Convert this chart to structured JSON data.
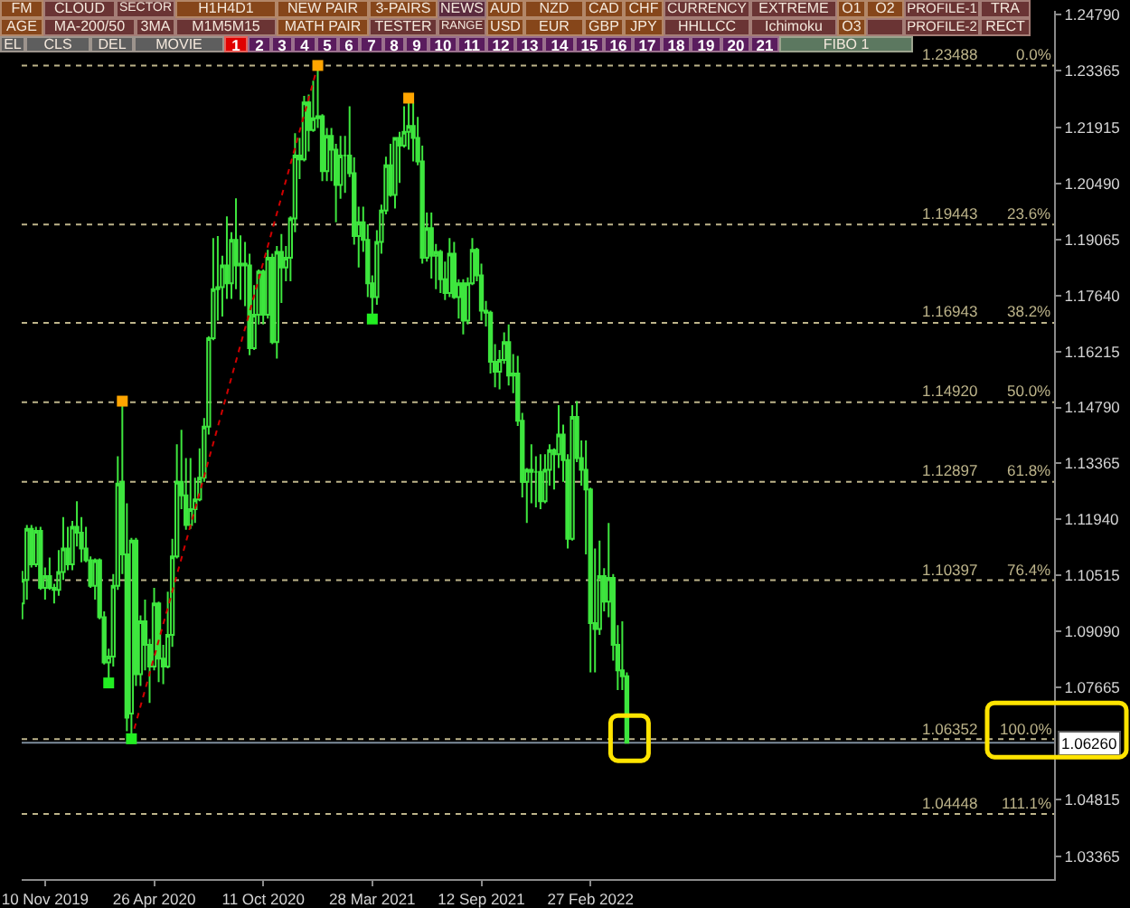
{
  "chart_data": {
    "type": "candlestick",
    "x": [
      "2019-10-06",
      "2019-10-13",
      "2019-10-20",
      "2019-10-27",
      "2019-11-03",
      "2019-11-10",
      "2019-11-17",
      "2019-11-24",
      "2019-12-01",
      "2019-12-08",
      "2019-12-15",
      "2019-12-22",
      "2019-12-29",
      "2020-01-05",
      "2020-01-12",
      "2020-01-19",
      "2020-01-26",
      "2020-02-02",
      "2020-02-09",
      "2020-02-16",
      "2020-02-23",
      "2020-03-01",
      "2020-03-08",
      "2020-03-15",
      "2020-03-22",
      "2020-03-29",
      "2020-04-05",
      "2020-04-12",
      "2020-04-19",
      "2020-04-26",
      "2020-05-03",
      "2020-05-10",
      "2020-05-17",
      "2020-05-24",
      "2020-05-31",
      "2020-06-07",
      "2020-06-14",
      "2020-06-21",
      "2020-06-28",
      "2020-07-05",
      "2020-07-12",
      "2020-07-19",
      "2020-07-26",
      "2020-08-02",
      "2020-08-09",
      "2020-08-16",
      "2020-08-23",
      "2020-08-30",
      "2020-09-06",
      "2020-09-13",
      "2020-09-20",
      "2020-09-27",
      "2020-10-04",
      "2020-10-11",
      "2020-10-18",
      "2020-10-25",
      "2020-11-01",
      "2020-11-08",
      "2020-11-15",
      "2020-11-22",
      "2020-11-29",
      "2020-12-06",
      "2020-12-13",
      "2020-12-20",
      "2020-12-27",
      "2021-01-03",
      "2021-01-10",
      "2021-01-17",
      "2021-01-24",
      "2021-01-31",
      "2021-02-07",
      "2021-02-14",
      "2021-02-21",
      "2021-02-28",
      "2021-03-07",
      "2021-03-14",
      "2021-03-21",
      "2021-03-28",
      "2021-04-04",
      "2021-04-11",
      "2021-04-18",
      "2021-04-25",
      "2021-05-02",
      "2021-05-09",
      "2021-05-16",
      "2021-05-23",
      "2021-05-30",
      "2021-06-06",
      "2021-06-13",
      "2021-06-20",
      "2021-06-27",
      "2021-07-04",
      "2021-07-11",
      "2021-07-18",
      "2021-07-25",
      "2021-08-01",
      "2021-08-08",
      "2021-08-15",
      "2021-08-22",
      "2021-08-29",
      "2021-09-05",
      "2021-09-12",
      "2021-09-19",
      "2021-09-26",
      "2021-10-03",
      "2021-10-10",
      "2021-10-17",
      "2021-10-24",
      "2021-10-31",
      "2021-11-07",
      "2021-11-14",
      "2021-11-21",
      "2021-11-28",
      "2021-12-05",
      "2021-12-12",
      "2021-12-19",
      "2021-12-26",
      "2022-01-02",
      "2022-01-09",
      "2022-01-16",
      "2022-01-23",
      "2022-01-30",
      "2022-02-06",
      "2022-02-13",
      "2022-02-20",
      "2022-02-27",
      "2022-03-06",
      "2022-03-13",
      "2022-03-20",
      "2022-03-27",
      "2022-04-03",
      "2022-04-10",
      "2022-04-17",
      "2022-04-24"
    ],
    "ohlc": [
      [
        1.098,
        1.1063,
        1.094,
        1.104
      ],
      [
        1.104,
        1.118,
        1.099,
        1.117
      ],
      [
        1.117,
        1.118,
        1.1072,
        1.108
      ],
      [
        1.108,
        1.1175,
        1.1073,
        1.1165
      ],
      [
        1.1165,
        1.1175,
        1.1015,
        1.102
      ],
      [
        1.102,
        1.1072,
        1.099,
        1.105
      ],
      [
        1.105,
        1.1097,
        1.1015,
        1.102
      ],
      [
        1.102,
        1.103,
        1.098,
        1.1015
      ],
      [
        1.1015,
        1.1116,
        1.1,
        1.106
      ],
      [
        1.106,
        1.12,
        1.104,
        1.112
      ],
      [
        1.112,
        1.1175,
        1.1065,
        1.108
      ],
      [
        1.108,
        1.119,
        1.1065,
        1.1175
      ],
      [
        1.1175,
        1.124,
        1.1125,
        1.116
      ],
      [
        1.116,
        1.12,
        1.1085,
        1.112
      ],
      [
        1.112,
        1.1175,
        1.1085,
        1.109
      ],
      [
        1.109,
        1.11,
        1.102,
        1.1025
      ],
      [
        1.1025,
        1.1095,
        1.099,
        1.109
      ],
      [
        1.109,
        1.1095,
        1.094,
        1.0945
      ],
      [
        1.0945,
        1.096,
        1.0825,
        1.083
      ],
      [
        1.083,
        1.0865,
        1.0778,
        1.0845
      ],
      [
        1.0845,
        1.1055,
        1.082,
        1.1025
      ],
      [
        1.1025,
        1.1355,
        1.1015,
        1.1285
      ],
      [
        1.129,
        1.1495,
        1.1055,
        1.1105
      ],
      [
        1.1105,
        1.1235,
        1.0655,
        1.069
      ],
      [
        1.07,
        1.1147,
        1.0636,
        1.114
      ],
      [
        1.114,
        1.1147,
        1.077,
        1.08
      ],
      [
        1.08,
        1.095,
        1.077,
        1.0935
      ],
      [
        1.0935,
        1.099,
        1.081,
        1.0875
      ],
      [
        1.0875,
        1.089,
        1.0727,
        1.082
      ],
      [
        1.082,
        1.102,
        1.081,
        1.098
      ],
      [
        1.098,
        1.0985,
        1.078,
        1.084
      ],
      [
        1.084,
        1.0875,
        1.0775,
        1.082
      ],
      [
        1.082,
        1.101,
        1.0815,
        1.09
      ],
      [
        1.09,
        1.1145,
        1.087,
        1.11
      ],
      [
        1.11,
        1.1385,
        1.1095,
        1.129
      ],
      [
        1.129,
        1.1422,
        1.122,
        1.1255
      ],
      [
        1.1255,
        1.135,
        1.1168,
        1.118
      ],
      [
        1.118,
        1.135,
        1.117,
        1.122
      ],
      [
        1.122,
        1.13,
        1.1185,
        1.1245
      ],
      [
        1.1245,
        1.1375,
        1.124,
        1.13
      ],
      [
        1.13,
        1.1452,
        1.129,
        1.143
      ],
      [
        1.143,
        1.166,
        1.141,
        1.1655
      ],
      [
        1.1655,
        1.191,
        1.165,
        1.178
      ],
      [
        1.178,
        1.1915,
        1.17,
        1.1785
      ],
      [
        1.1785,
        1.1865,
        1.171,
        1.184
      ],
      [
        1.184,
        1.1965,
        1.1755,
        1.1795
      ],
      [
        1.1795,
        1.1925,
        1.1755,
        1.1905
      ],
      [
        1.1905,
        1.2011,
        1.178,
        1.184
      ],
      [
        1.184,
        1.1917,
        1.1753,
        1.1845
      ],
      [
        1.1845,
        1.19,
        1.1737,
        1.184
      ],
      [
        1.184,
        1.187,
        1.1612,
        1.163
      ],
      [
        1.163,
        1.179,
        1.1625,
        1.1715
      ],
      [
        1.1715,
        1.183,
        1.169,
        1.1825
      ],
      [
        1.1825,
        1.183,
        1.169,
        1.1715
      ],
      [
        1.1715,
        1.188,
        1.1705,
        1.186
      ],
      [
        1.186,
        1.187,
        1.164,
        1.1645
      ],
      [
        1.1645,
        1.189,
        1.1603,
        1.1875
      ],
      [
        1.1875,
        1.192,
        1.1745,
        1.1835
      ],
      [
        1.1835,
        1.189,
        1.18,
        1.186
      ],
      [
        1.186,
        1.1965,
        1.18,
        1.196
      ],
      [
        1.196,
        1.2177,
        1.1925,
        1.212
      ],
      [
        1.212,
        1.2165,
        1.206,
        1.211
      ],
      [
        1.211,
        1.2272,
        1.2105,
        1.2255
      ],
      [
        1.2255,
        1.2275,
        1.213,
        1.2185
      ],
      [
        1.2185,
        1.231,
        1.218,
        1.2215
      ],
      [
        1.2215,
        1.2349,
        1.219,
        1.222
      ],
      [
        1.222,
        1.2225,
        1.2055,
        1.208
      ],
      [
        1.208,
        1.219,
        1.2055,
        1.217
      ],
      [
        1.217,
        1.219,
        1.2055,
        1.2135
      ],
      [
        1.2135,
        1.215,
        1.195,
        1.2045
      ],
      [
        1.2045,
        1.217,
        1.201,
        1.212
      ],
      [
        1.212,
        1.217,
        1.2025,
        1.212
      ],
      [
        1.212,
        1.2245,
        1.2065,
        1.2075
      ],
      [
        1.2075,
        1.2115,
        1.1893,
        1.1915
      ],
      [
        1.1915,
        1.199,
        1.1835,
        1.195
      ],
      [
        1.195,
        1.199,
        1.1875,
        1.1905
      ],
      [
        1.1905,
        1.1945,
        1.176,
        1.1795
      ],
      [
        1.1795,
        1.1815,
        1.1704,
        1.176
      ],
      [
        1.176,
        1.193,
        1.174,
        1.19
      ],
      [
        1.19,
        1.1995,
        1.187,
        1.198
      ],
      [
        1.198,
        1.2117,
        1.197,
        1.2095
      ],
      [
        1.2095,
        1.215,
        1.2015,
        1.202
      ],
      [
        1.202,
        1.2165,
        1.1985,
        1.2165
      ],
      [
        1.2165,
        1.218,
        1.205,
        1.2145
      ],
      [
        1.2145,
        1.2245,
        1.214,
        1.218
      ],
      [
        1.218,
        1.2266,
        1.2135,
        1.2195
      ],
      [
        1.2195,
        1.2255,
        1.2105,
        1.2165
      ],
      [
        1.2165,
        1.2218,
        1.2095,
        1.2105
      ],
      [
        1.2105,
        1.2145,
        1.1845,
        1.186
      ],
      [
        1.186,
        1.1975,
        1.185,
        1.1935
      ],
      [
        1.1935,
        1.1975,
        1.1807,
        1.1865
      ],
      [
        1.1865,
        1.1895,
        1.178,
        1.1875
      ],
      [
        1.1875,
        1.188,
        1.177,
        1.1805
      ],
      [
        1.1805,
        1.185,
        1.1752,
        1.177
      ],
      [
        1.177,
        1.191,
        1.176,
        1.187
      ],
      [
        1.187,
        1.19,
        1.1755,
        1.176
      ],
      [
        1.176,
        1.1805,
        1.1705,
        1.1795
      ],
      [
        1.1795,
        1.1805,
        1.1665,
        1.17
      ],
      [
        1.17,
        1.181,
        1.169,
        1.1795
      ],
      [
        1.1795,
        1.191,
        1.179,
        1.188
      ],
      [
        1.188,
        1.1885,
        1.18,
        1.1815
      ],
      [
        1.1815,
        1.1845,
        1.17,
        1.1725
      ],
      [
        1.1725,
        1.175,
        1.1685,
        1.172
      ],
      [
        1.172,
        1.1725,
        1.1565,
        1.1595
      ],
      [
        1.1595,
        1.164,
        1.153,
        1.157
      ],
      [
        1.157,
        1.1625,
        1.1525,
        1.16
      ],
      [
        1.16,
        1.167,
        1.159,
        1.1645
      ],
      [
        1.1645,
        1.169,
        1.1535,
        1.156
      ],
      [
        1.156,
        1.1615,
        1.1515,
        1.1565
      ],
      [
        1.1565,
        1.161,
        1.1432,
        1.1445
      ],
      [
        1.1445,
        1.1465,
        1.125,
        1.129
      ],
      [
        1.129,
        1.1325,
        1.1185,
        1.132
      ],
      [
        1.132,
        1.1385,
        1.1235,
        1.1315
      ],
      [
        1.1315,
        1.1355,
        1.1225,
        1.1315
      ],
      [
        1.1315,
        1.136,
        1.122,
        1.124
      ],
      [
        1.124,
        1.136,
        1.1235,
        1.132
      ],
      [
        1.132,
        1.1385,
        1.128,
        1.137
      ],
      [
        1.137,
        1.1375,
        1.127,
        1.136
      ],
      [
        1.136,
        1.1485,
        1.1325,
        1.141
      ],
      [
        1.141,
        1.1435,
        1.129,
        1.1345
      ],
      [
        1.1345,
        1.136,
        1.112,
        1.1145
      ],
      [
        1.1145,
        1.1485,
        1.114,
        1.1455
      ],
      [
        1.1455,
        1.1495,
        1.134,
        1.135
      ],
      [
        1.135,
        1.1395,
        1.128,
        1.132
      ],
      [
        1.132,
        1.1395,
        1.1105,
        1.127
      ],
      [
        1.127,
        1.1275,
        1.0805,
        1.093
      ],
      [
        1.093,
        1.112,
        1.0805,
        1.0915
      ],
      [
        1.0915,
        1.114,
        1.09,
        1.105
      ],
      [
        1.105,
        1.107,
        1.096,
        1.0985
      ],
      [
        1.0985,
        1.1185,
        1.0945,
        1.1045
      ],
      [
        1.1045,
        1.1055,
        1.0835,
        1.0875
      ],
      [
        1.0875,
        1.0925,
        1.076,
        1.081
      ],
      [
        1.081,
        1.0935,
        1.076,
        1.0795
      ],
      [
        1.0795,
        1.0805,
        1.0626,
        1.0626
      ]
    ],
    "color": "#3ee63e",
    "xlim": [
      "2019-10-05",
      "2024-02-11"
    ],
    "xticks": [
      {
        "value": "2019-11-10",
        "label": "10 Nov 2019"
      },
      {
        "value": "2020-04-26",
        "label": "26 Apr 2020"
      },
      {
        "value": "2020-10-11",
        "label": "11 Oct 2020"
      },
      {
        "value": "2021-03-28",
        "label": "28 Mar 2021"
      },
      {
        "value": "2021-09-12",
        "label": "12 Sep 2021"
      },
      {
        "value": "2022-02-27",
        "label": "27 Feb 2022"
      }
    ],
    "ylim": [
      1.0279,
      1.2488
    ],
    "yticks": [
      {
        "value": 1.2479,
        "label": "1.24790"
      },
      1.23365,
      1.21915,
      {
        "value": 1.2049,
        "label": "1.20490"
      },
      1.19065,
      {
        "value": 1.1764,
        "label": "1.17640"
      },
      1.16215,
      {
        "value": 1.1479,
        "label": "1.14790"
      },
      1.13365,
      {
        "value": 1.1194,
        "label": "1.11940"
      },
      1.10515,
      {
        "value": 1.0909,
        "label": "1.09090"
      },
      1.07665,
      1.04815,
      1.03365
    ],
    "series": [
      {
        "type": "line",
        "x": [
          "2020-03-22",
          "2021-01-03"
        ],
        "values": [
          1.0635,
          1.2349
        ],
        "color": "#d00000",
        "line_style": "dotted",
        "marker": "none"
      },
      {
        "type": "scatter",
        "x": [
          "2020-03-08",
          "2021-01-03",
          "2021-05-23"
        ],
        "values": [
          1.1495,
          1.2349,
          1.2266
        ],
        "color": "#ffa500",
        "marker": "square"
      },
      {
        "type": "scatter",
        "x": [
          "2020-02-16",
          "2020-03-22",
          "2021-03-28"
        ],
        "values": [
          1.0778,
          1.0636,
          1.1704
        ],
        "color": "#22ee22",
        "marker": "square"
      }
    ],
    "ref_lines": [
      {
        "axis": "y",
        "value": 1.23488,
        "label": "1.23488",
        "color": "#bdb48a",
        "line_style": "dotted"
      },
      {
        "axis": "y",
        "value": 1.19443,
        "label": "1.19443",
        "color": "#bdb48a",
        "line_style": "dotted"
      },
      {
        "axis": "y",
        "value": 1.16943,
        "label": "1.16943",
        "color": "#bdb48a",
        "line_style": "dotted"
      },
      {
        "axis": "y",
        "value": 1.1492,
        "label": "1.14920",
        "color": "#bdb48a",
        "line_style": "dotted"
      },
      {
        "axis": "y",
        "value": 1.12897,
        "label": "1.12897",
        "color": "#bdb48a",
        "line_style": "dotted"
      },
      {
        "axis": "y",
        "value": 1.10397,
        "label": "1.10397",
        "color": "#bdb48a",
        "line_style": "dotted"
      },
      {
        "axis": "y",
        "value": 1.06352,
        "label": "1.06352",
        "color": "#bdb48a",
        "line_style": "dotted"
      },
      {
        "axis": "y",
        "value": 1.04448,
        "label": "1.04448",
        "color": "#bdb48a",
        "line_style": "dotted"
      },
      {
        "axis": "y",
        "value": 1.0626,
        "label": "1.06260",
        "color": "#7d8c9c",
        "line_style": "solid"
      }
    ],
    "annotations": [
      "FM",
      "CLOUD",
      "SECTOR",
      "H1H4D1",
      "NEW PAIR",
      "3-PAIRS",
      "NEWS",
      "AUD",
      "NZD",
      "CAD",
      "CHF",
      "CURRENCY",
      "EXTREME",
      "O1",
      "O2",
      "PROFILE-1",
      "TRA",
      "AGE",
      "MA-200/50",
      "3MA",
      "M1M5M15",
      "MATH PAIR",
      "TESTER",
      "RANGE",
      "USD",
      "EUR",
      "GBP",
      "JPY",
      "HHLLCC",
      "Ichimoku",
      "O3",
      "PROFILE-2",
      "RECT",
      "EL",
      "CLS",
      "DEL",
      "MOVIE",
      "1",
      "2",
      "3",
      "4",
      "5",
      "6",
      "7",
      "8",
      "9",
      "10",
      "11",
      "12",
      "13",
      "14",
      "15",
      "16",
      "17",
      "18",
      "19",
      "20",
      "21",
      "FIBO 1",
      {
        "text": "0.0%",
        "y": 1.23488
      },
      {
        "text": "23.6%",
        "y": 1.19443
      },
      {
        "text": "38.2%",
        "y": 1.16943
      },
      {
        "text": "50.0%",
        "y": 1.1492
      },
      {
        "text": "61.8%",
        "y": 1.12897
      },
      {
        "text": "76.4%",
        "y": 1.10397
      },
      {
        "text": "100.0%",
        "y": 1.06352
      },
      {
        "text": "111.1%",
        "y": 1.04448
      }
    ]
  }
}
